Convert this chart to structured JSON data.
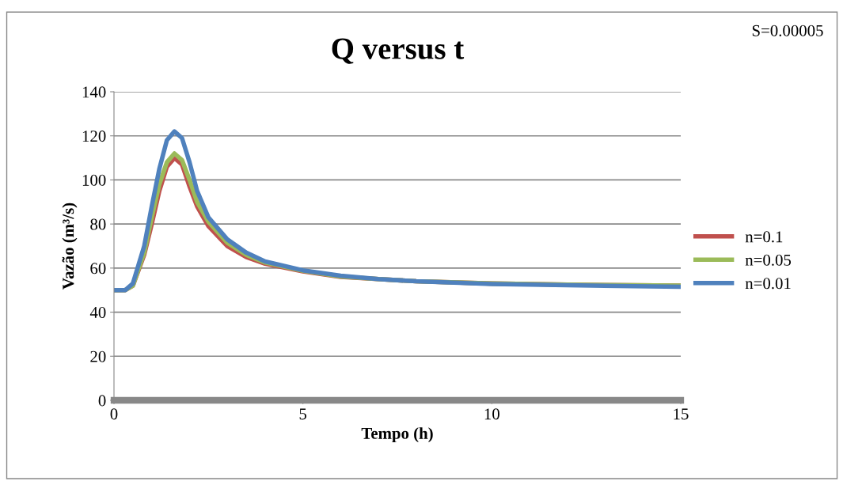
{
  "chart_data": {
    "type": "line",
    "title": "Q versus t",
    "xlabel": "Tempo (h)",
    "ylabel": "Vazão (m³/s)",
    "annotations": [
      "S=0.00005"
    ],
    "x": [
      0,
      0.3,
      0.5,
      0.8,
      1.0,
      1.2,
      1.4,
      1.6,
      1.8,
      2.0,
      2.2,
      2.5,
      3,
      3.5,
      4,
      5,
      6,
      7,
      8,
      10,
      12,
      15
    ],
    "series": [
      {
        "name": "n=0.1",
        "color": "#c0504d",
        "values": [
          50,
          50,
          52,
          66,
          80,
          95,
          106,
          110,
          107,
          97,
          88,
          79,
          70,
          65,
          62,
          58.5,
          56,
          55,
          54,
          53,
          52.5,
          52
        ]
      },
      {
        "name": "n=0.05",
        "color": "#9bbb59",
        "values": [
          50,
          50,
          52,
          67,
          83,
          98,
          108,
          112,
          109,
          100,
          90,
          81,
          71.5,
          66,
          62.5,
          58.8,
          56.2,
          55,
          54,
          53,
          52.5,
          52
        ]
      },
      {
        "name": "n=0.01",
        "color": "#4f81bd",
        "values": [
          50,
          50,
          53,
          70,
          88,
          105,
          118,
          122,
          119,
          108,
          95,
          83,
          73,
          67,
          63,
          59,
          56.5,
          55,
          54,
          52.8,
          52.2,
          51.5
        ]
      }
    ],
    "xlim": [
      0,
      15
    ],
    "xticks": [
      0,
      5,
      10,
      15
    ],
    "ylim": [
      0,
      140
    ],
    "yticks": [
      0,
      20,
      40,
      60,
      80,
      100,
      120,
      140
    ],
    "grid": "y",
    "legend": "right",
    "marker": "none",
    "line_style": "solid"
  }
}
